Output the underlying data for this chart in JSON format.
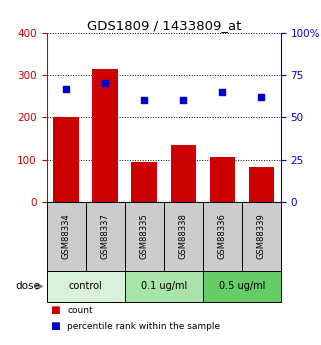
{
  "title": "GDS1809 / 1433809_at",
  "samples": [
    "GSM88334",
    "GSM88337",
    "GSM88335",
    "GSM88338",
    "GSM88336",
    "GSM88339"
  ],
  "counts": [
    200,
    315,
    95,
    135,
    105,
    82
  ],
  "percentiles": [
    67,
    70,
    60,
    60,
    65,
    62
  ],
  "ylim_left": [
    0,
    400
  ],
  "ylim_right": [
    0,
    100
  ],
  "yticks_left": [
    0,
    100,
    200,
    300,
    400
  ],
  "yticks_right": [
    0,
    25,
    50,
    75,
    100
  ],
  "bar_color": "#cc0000",
  "dot_color": "#0000cc",
  "dose_groups": [
    {
      "label": "control",
      "start": 0,
      "end": 2,
      "color": "#d9f0d9"
    },
    {
      "label": "0.1 ug/ml",
      "start": 2,
      "end": 4,
      "color": "#a8e4a8"
    },
    {
      "label": "0.5 ug/ml",
      "start": 4,
      "end": 6,
      "color": "#66cc66"
    }
  ],
  "dose_label": "dose",
  "legend_count_label": "count",
  "legend_pct_label": "percentile rank within the sample",
  "tick_label_color_left": "#cc0000",
  "tick_label_color_right": "#0000cc",
  "sample_box_color": "#cccccc",
  "fig_width": 3.21,
  "fig_height": 3.45,
  "dpi": 100
}
